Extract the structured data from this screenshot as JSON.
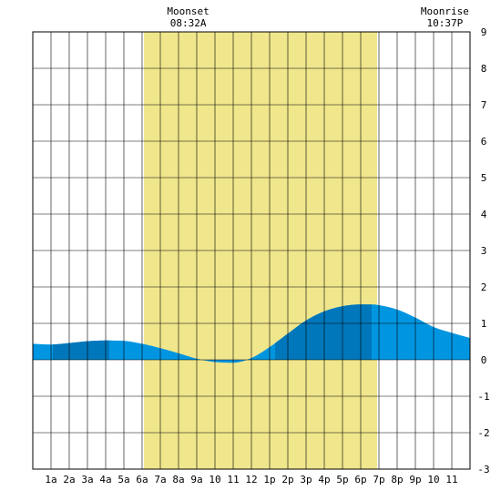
{
  "chart_data": {
    "type": "area",
    "title": "",
    "xlabel": "",
    "ylabel": "",
    "x_tick_labels": [
      "1a",
      "2a",
      "3a",
      "4a",
      "5a",
      "6a",
      "7a",
      "8a",
      "9a",
      "10",
      "11",
      "12",
      "1p",
      "2p",
      "3p",
      "4p",
      "5p",
      "6p",
      "7p",
      "8p",
      "9p",
      "10",
      "11"
    ],
    "xlim": [
      0,
      24
    ],
    "ylim": [
      -3,
      9
    ],
    "y_ticks": [
      -3,
      -2,
      -1,
      0,
      1,
      2,
      3,
      4,
      5,
      6,
      7,
      8,
      9
    ],
    "grid": true,
    "daylight": {
      "start_hour": 6.1,
      "end_hour": 18.9,
      "color": "#f0e68c"
    },
    "moon_events": [
      {
        "label": "Moonset",
        "time": "08:32A",
        "hour": 8.53
      },
      {
        "label": "Moonrise",
        "time": "10:37P",
        "hour": 22.62
      }
    ],
    "tide_series": {
      "name": "",
      "x": [
        0,
        1,
        2,
        3,
        4,
        5,
        6,
        7,
        8,
        9,
        10,
        11,
        12,
        13,
        14,
        15,
        16,
        17,
        18,
        18.6,
        19,
        20,
        21,
        22,
        23,
        24
      ],
      "values": [
        0.44,
        0.42,
        0.46,
        0.51,
        0.53,
        0.52,
        0.44,
        0.32,
        0.18,
        0.03,
        -0.06,
        -0.08,
        0.05,
        0.35,
        0.72,
        1.08,
        1.33,
        1.47,
        1.52,
        1.52,
        1.5,
        1.38,
        1.16,
        0.9,
        0.74,
        0.6
      ]
    },
    "highlight_bands": [
      {
        "start_hour": 1.1,
        "end_hour": 4.2,
        "color": "#0077bb"
      },
      {
        "start_hour": 13.3,
        "end_hour": 18.6,
        "color": "#0077bb"
      }
    ],
    "tide_color": "#0095e0"
  }
}
